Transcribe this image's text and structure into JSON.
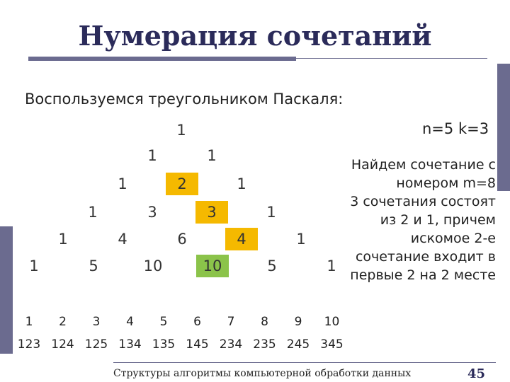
{
  "title": "Нумерация сочетаний",
  "subtitle": "Воспользуемся треугольником Паскаля:",
  "params": "n=5 k=3",
  "explanation": [
    "Найдем сочетание с",
    "номером m=8",
    "3 сочетания состоят",
    "из 2 и 1, причем",
    "искомое 2-е",
    "сочетание входит в",
    "первые 2 на 2 месте"
  ],
  "triangle": [
    [
      "1"
    ],
    [
      "1",
      "1"
    ],
    [
      "1",
      "2",
      "1"
    ],
    [
      "1",
      "3",
      "3",
      "1"
    ],
    [
      "1",
      "4",
      "6",
      "4",
      "1"
    ],
    [
      "1",
      "5",
      "10",
      "10",
      "5",
      "1"
    ]
  ],
  "highlight_orange": [
    "r2c1",
    "r3c2",
    "r4c3"
  ],
  "highlight_green": [
    "r5c3"
  ],
  "indices": [
    "1",
    "2",
    "3",
    "4",
    "5",
    "6",
    "7",
    "8",
    "9",
    "10"
  ],
  "combinations": [
    "123",
    "124",
    "125",
    "134",
    "135",
    "145",
    "234",
    "235",
    "245",
    "345"
  ],
  "footer": "Структуры алгоритмы компьютерной обработки данных",
  "page_number": "45",
  "colors": {
    "accent": "#6b6b8f",
    "title": "#2b2b5a",
    "orange": "#f5b900",
    "green": "#8bc34a"
  }
}
